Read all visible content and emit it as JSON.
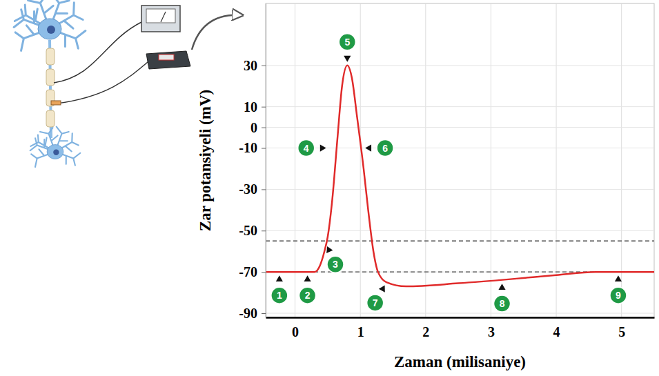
{
  "chart_data": {
    "type": "line",
    "x": [
      -0.45,
      0.3,
      0.38,
      0.45,
      0.5,
      0.57,
      0.65,
      0.72,
      0.8,
      0.87,
      0.95,
      1.05,
      1.12,
      1.2,
      1.27,
      1.4,
      1.7,
      2.5,
      3.3,
      4.0,
      4.6,
      5.5
    ],
    "values": [
      -70,
      -70,
      -67,
      -60,
      -53,
      -35,
      -5,
      20,
      30,
      24,
      5,
      -20,
      -40,
      -60,
      -70,
      -75,
      -77,
      -75.5,
      -73.5,
      -71.5,
      -70,
      -70
    ],
    "color": "#e02a2a",
    "xlabel": "Zaman (milisaniye)",
    "ylabel": "Zar potansiyeli (mV)",
    "xlim": [
      -0.45,
      5.5
    ],
    "ylim": [
      -92,
      60
    ],
    "xticks": [
      0,
      1,
      2,
      3,
      4,
      5
    ],
    "yticks": [
      30,
      10,
      0,
      -10,
      -30,
      -50,
      -70,
      -90
    ],
    "grid": true,
    "hlines": [
      -55,
      -70
    ],
    "annotations": [
      {
        "label": "1",
        "x": -0.24,
        "y": -70
      },
      {
        "label": "2",
        "x": 0.19,
        "y": -70
      },
      {
        "label": "3",
        "x": 0.47,
        "y": -56
      },
      {
        "label": "4",
        "x": 0.53,
        "y": -10
      },
      {
        "label": "5",
        "x": 0.8,
        "y": 30
      },
      {
        "label": "6",
        "x": 1.02,
        "y": -10
      },
      {
        "label": "7",
        "x": 1.4,
        "y": -75
      },
      {
        "label": "8",
        "x": 3.17,
        "y": -74
      },
      {
        "label": "9",
        "x": 4.95,
        "y": -70
      }
    ]
  }
}
